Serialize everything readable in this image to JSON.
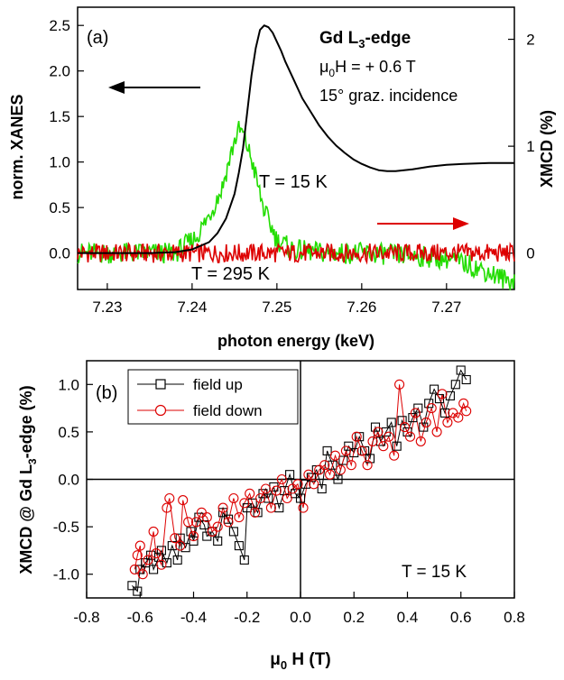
{
  "colors": {
    "xanes": "#000000",
    "xmcd_15K": "#22dd00",
    "xmcd_295K": "#dd0000",
    "field_up": "#000000",
    "field_down": "#dd0000",
    "arrow_left": "#000000",
    "arrow_right": "#dd0000"
  },
  "panel_a": {
    "tag": "(a)",
    "annotation_edge_main": "Gd L",
    "annotation_edge_sub": "3",
    "annotation_edge_tail": "-edge",
    "annotation_field_mu": "μ",
    "annotation_field_sub": "0",
    "annotation_field_tail": "H = + 0.6 T",
    "annotation_incidence": "15° graz. incidence",
    "label_T15": "T = 15 K",
    "label_T295": "T = 295 K",
    "xlabel": "photon energy (keV)",
    "ylabel_left": "norm. XANES",
    "ylabel_right": "XMCD (%)"
  },
  "panel_b": {
    "tag": "(b)",
    "legend_up": "field up",
    "legend_down": "field down",
    "label_T": "T = 15 K",
    "ylabel_main": "XMCD @ Gd L",
    "ylabel_sub": "3",
    "ylabel_tail": "-edge (%)",
    "xlabel_mu": "μ",
    "xlabel_sub": "0",
    "xlabel_tail": " H (T)"
  },
  "chart_data": [
    {
      "type": "line",
      "xlim": [
        7.2265,
        7.278
      ],
      "ylim": [
        -0.4,
        2.7
      ],
      "y2lim": [
        -0.34,
        2.3
      ],
      "xticks": [
        "7.23",
        "7.24",
        "7.25",
        "7.26",
        "7.27"
      ],
      "yticks": [
        "0.0",
        "0.5",
        "1.0",
        "1.5",
        "2.0",
        "2.5"
      ],
      "y2ticks": [
        "0",
        "1",
        "2"
      ],
      "series": [
        {
          "name": "norm. XANES",
          "axis": "left",
          "x": [
            7.2265,
            7.235,
            7.238,
            7.24,
            7.242,
            7.243,
            7.244,
            7.245,
            7.2455,
            7.246,
            7.2465,
            7.247,
            7.2475,
            7.248,
            7.2485,
            7.249,
            7.2495,
            7.25,
            7.2505,
            7.251,
            7.252,
            7.253,
            7.254,
            7.255,
            7.256,
            7.257,
            7.258,
            7.259,
            7.26,
            7.261,
            7.262,
            7.263,
            7.264,
            7.266,
            7.268,
            7.27,
            7.272,
            7.275,
            7.278
          ],
          "y": [
            0.0,
            0.0,
            0.01,
            0.04,
            0.12,
            0.22,
            0.38,
            0.65,
            0.88,
            1.15,
            1.55,
            1.95,
            2.25,
            2.45,
            2.5,
            2.48,
            2.42,
            2.32,
            2.22,
            2.1,
            1.9,
            1.7,
            1.55,
            1.4,
            1.28,
            1.18,
            1.1,
            1.03,
            0.98,
            0.94,
            0.91,
            0.9,
            0.9,
            0.92,
            0.95,
            0.97,
            0.98,
            0.99,
            0.99
          ]
        },
        {
          "name": "T = 15 K",
          "axis": "right",
          "x": [
            7.2265,
            7.238,
            7.2405,
            7.242,
            7.2435,
            7.2445,
            7.245,
            7.2455,
            7.246,
            7.2465,
            7.247,
            7.2475,
            7.248,
            7.2485,
            7.249,
            7.2495,
            7.25,
            7.252,
            7.256,
            7.26,
            7.265,
            7.27,
            7.273,
            7.275,
            7.277
          ],
          "y": [
            0.0,
            0.0,
            0.15,
            0.35,
            0.6,
            0.9,
            1.05,
            1.15,
            1.12,
            1.0,
            0.88,
            0.72,
            0.55,
            0.4,
            0.3,
            0.22,
            0.12,
            0.03,
            0.0,
            0.0,
            -0.02,
            -0.05,
            -0.12,
            -0.18,
            -0.25
          ]
        },
        {
          "name": "T = 295 K",
          "axis": "right",
          "x": [
            7.2265,
            7.278
          ],
          "y": [
            0.0,
            0.0
          ]
        }
      ]
    },
    {
      "type": "scatter",
      "xlim": [
        -0.8,
        0.8
      ],
      "ylim": [
        -1.25,
        1.25
      ],
      "xticks": [
        "-0.8",
        "-0.6",
        "-0.4",
        "-0.2",
        "0.0",
        "0.2",
        "0.4",
        "0.6",
        "0.8"
      ],
      "yticks": [
        "-1.0",
        "-0.5",
        "0.0",
        "0.5",
        "1.0"
      ],
      "legend": "top-left",
      "series": [
        {
          "name": "field up",
          "x": [
            -0.63,
            -0.61,
            -0.6,
            -0.58,
            -0.56,
            -0.55,
            -0.53,
            -0.52,
            -0.5,
            -0.48,
            -0.46,
            -0.45,
            -0.43,
            -0.41,
            -0.4,
            -0.38,
            -0.36,
            -0.35,
            -0.33,
            -0.31,
            -0.29,
            -0.27,
            -0.25,
            -0.23,
            -0.21,
            -0.2,
            -0.18,
            -0.16,
            -0.14,
            -0.12,
            -0.1,
            -0.08,
            -0.06,
            -0.04,
            -0.02,
            0.0,
            0.02,
            0.04,
            0.06,
            0.08,
            0.1,
            0.12,
            0.14,
            0.16,
            0.18,
            0.2,
            0.22,
            0.24,
            0.26,
            0.28,
            0.3,
            0.32,
            0.34,
            0.36,
            0.38,
            0.4,
            0.42,
            0.44,
            0.46,
            0.48,
            0.5,
            0.52,
            0.54,
            0.56,
            0.58,
            0.6,
            0.62
          ],
          "y": [
            -1.12,
            -1.18,
            -0.95,
            -0.88,
            -0.8,
            -0.95,
            -0.82,
            -0.75,
            -0.88,
            -0.7,
            -0.85,
            -0.62,
            -0.72,
            -0.55,
            -0.65,
            -0.4,
            -0.48,
            -0.6,
            -0.55,
            -0.65,
            -0.35,
            -0.42,
            -0.55,
            -0.7,
            -0.85,
            -0.3,
            -0.25,
            -0.35,
            -0.15,
            -0.2,
            -0.08,
            -0.3,
            -0.12,
            0.05,
            -0.15,
            -0.2,
            -0.05,
            0.02,
            0.1,
            -0.1,
            0.3,
            0.15,
            0.0,
            0.2,
            0.35,
            0.28,
            0.45,
            0.3,
            0.22,
            0.55,
            0.4,
            0.5,
            0.6,
            0.35,
            0.62,
            0.5,
            0.65,
            0.75,
            0.55,
            0.8,
            0.95,
            0.85,
            0.7,
            0.88,
            1.0,
            1.15,
            1.05
          ]
        },
        {
          "name": "field down",
          "x": [
            -0.62,
            -0.61,
            -0.6,
            -0.59,
            -0.57,
            -0.55,
            -0.54,
            -0.52,
            -0.5,
            -0.49,
            -0.47,
            -0.45,
            -0.44,
            -0.42,
            -0.4,
            -0.39,
            -0.37,
            -0.35,
            -0.33,
            -0.31,
            -0.29,
            -0.27,
            -0.25,
            -0.23,
            -0.21,
            -0.19,
            -0.17,
            -0.15,
            -0.13,
            -0.11,
            -0.09,
            -0.07,
            -0.05,
            -0.03,
            -0.01,
            0.01,
            0.03,
            0.05,
            0.07,
            0.09,
            0.11,
            0.13,
            0.15,
            0.17,
            0.19,
            0.21,
            0.23,
            0.25,
            0.27,
            0.29,
            0.31,
            0.33,
            0.35,
            0.37,
            0.39,
            0.41,
            0.43,
            0.45,
            0.47,
            0.49,
            0.51,
            0.53,
            0.55,
            0.57,
            0.59,
            0.61,
            0.62
          ],
          "y": [
            -0.95,
            -0.8,
            -0.7,
            -1.0,
            -0.85,
            -0.55,
            -0.78,
            -0.9,
            -0.3,
            -0.2,
            -0.62,
            -0.7,
            -0.22,
            -0.45,
            -0.6,
            -0.45,
            -0.35,
            -0.4,
            -0.55,
            -0.5,
            -0.3,
            -0.45,
            -0.2,
            -0.4,
            -0.25,
            -0.15,
            -0.35,
            -0.2,
            -0.1,
            -0.3,
            -0.12,
            0.0,
            -0.2,
            -0.1,
            -0.05,
            -0.3,
            0.05,
            -0.05,
            0.1,
            0.15,
            0.05,
            0.25,
            0.1,
            0.3,
            0.15,
            0.45,
            0.3,
            0.15,
            0.4,
            0.5,
            0.35,
            0.45,
            0.25,
            1.0,
            0.55,
            0.45,
            0.7,
            0.4,
            0.6,
            0.75,
            0.5,
            0.9,
            0.6,
            0.7,
            0.65,
            0.8,
            0.72
          ]
        }
      ]
    }
  ]
}
